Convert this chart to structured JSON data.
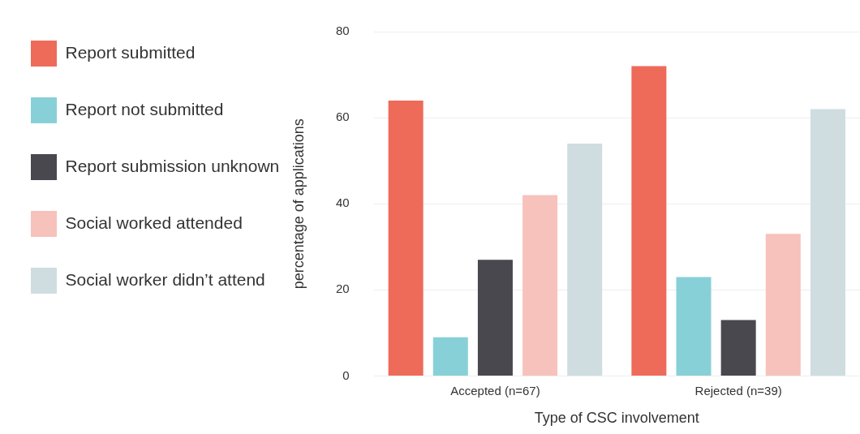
{
  "chart_data": {
    "type": "bar",
    "xlabel": "Type of CSC involvement",
    "ylabel": "percentage of applications",
    "categories": [
      "Accepted (n=67)",
      "Rejected (n=39)"
    ],
    "series": [
      {
        "name": "Report submitted",
        "color": "#ee6a59",
        "values": [
          64,
          72
        ]
      },
      {
        "name": "Report not submitted",
        "color": "#88d0d8",
        "values": [
          9,
          23
        ]
      },
      {
        "name": "Report submission unknown",
        "color": "#48484e",
        "values": [
          27,
          13
        ]
      },
      {
        "name": "Social worked attended",
        "color": "#f7c2bb",
        "values": [
          42,
          33
        ]
      },
      {
        "name": "Social worker didn’t attend",
        "color": "#cfdde1",
        "values": [
          54,
          62
        ]
      }
    ],
    "ylim": [
      0,
      80
    ],
    "yticks": [
      0,
      20,
      40,
      60,
      80
    ],
    "grid": "y",
    "legend": "left"
  }
}
